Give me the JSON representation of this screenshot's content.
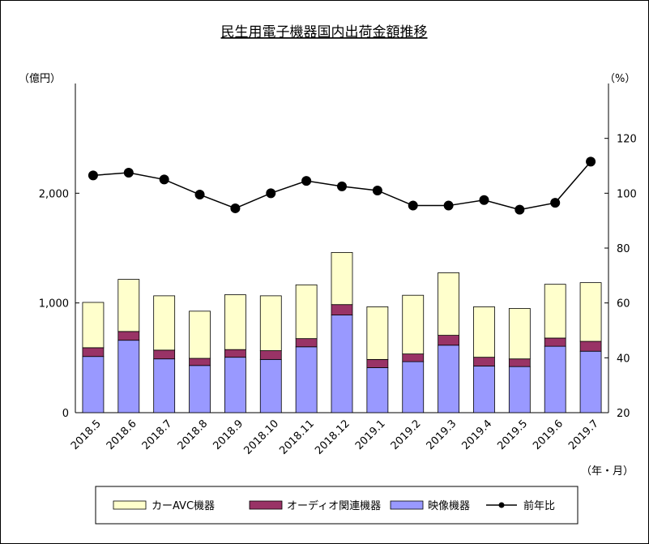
{
  "chart_data": {
    "type": "bar",
    "title": "民生用電子機器国内出荷金額推移",
    "y_left_unit": "（億円）",
    "y_right_unit": "（%）",
    "x_unit": "（年・月）",
    "ylim_left": [
      0,
      3000
    ],
    "ylim_right": [
      20,
      140
    ],
    "yticks_left": [
      "0",
      "1,000",
      "2,000"
    ],
    "yticks_right": [
      "20",
      "40",
      "60",
      "80",
      "100",
      "120"
    ],
    "categories": [
      "2018.5",
      "2018.6",
      "2018.7",
      "2018.8",
      "2018.9",
      "2018.10",
      "2018.11",
      "2018.12",
      "2019.1",
      "2019.2",
      "2019.3",
      "2019.4",
      "2019.5",
      "2019.6",
      "2019.7"
    ],
    "series": [
      {
        "name": "映像機器",
        "color": "#9999ff",
        "values": [
          512,
          660,
          490,
          430,
          505,
          485,
          600,
          890,
          410,
          465,
          615,
          425,
          420,
          605,
          560
        ]
      },
      {
        "name": "オーディオ関連機器",
        "color": "#993366",
        "values": [
          80,
          80,
          80,
          65,
          70,
          80,
          75,
          95,
          75,
          70,
          90,
          80,
          70,
          75,
          90
        ]
      },
      {
        "name": "カーAVC機器",
        "color": "#ffffcc",
        "values": [
          413,
          475,
          495,
          430,
          500,
          500,
          490,
          475,
          480,
          535,
          570,
          460,
          460,
          490,
          535
        ]
      }
    ],
    "line_series": {
      "name": "前年比",
      "color": "#000000",
      "values": [
        106.5,
        107.5,
        105,
        99.5,
        94.5,
        100,
        104.5,
        102.5,
        101,
        95.5,
        95.5,
        97.5,
        94,
        96.5,
        111.5
      ]
    },
    "legend_position": "bottom",
    "grid": false
  }
}
